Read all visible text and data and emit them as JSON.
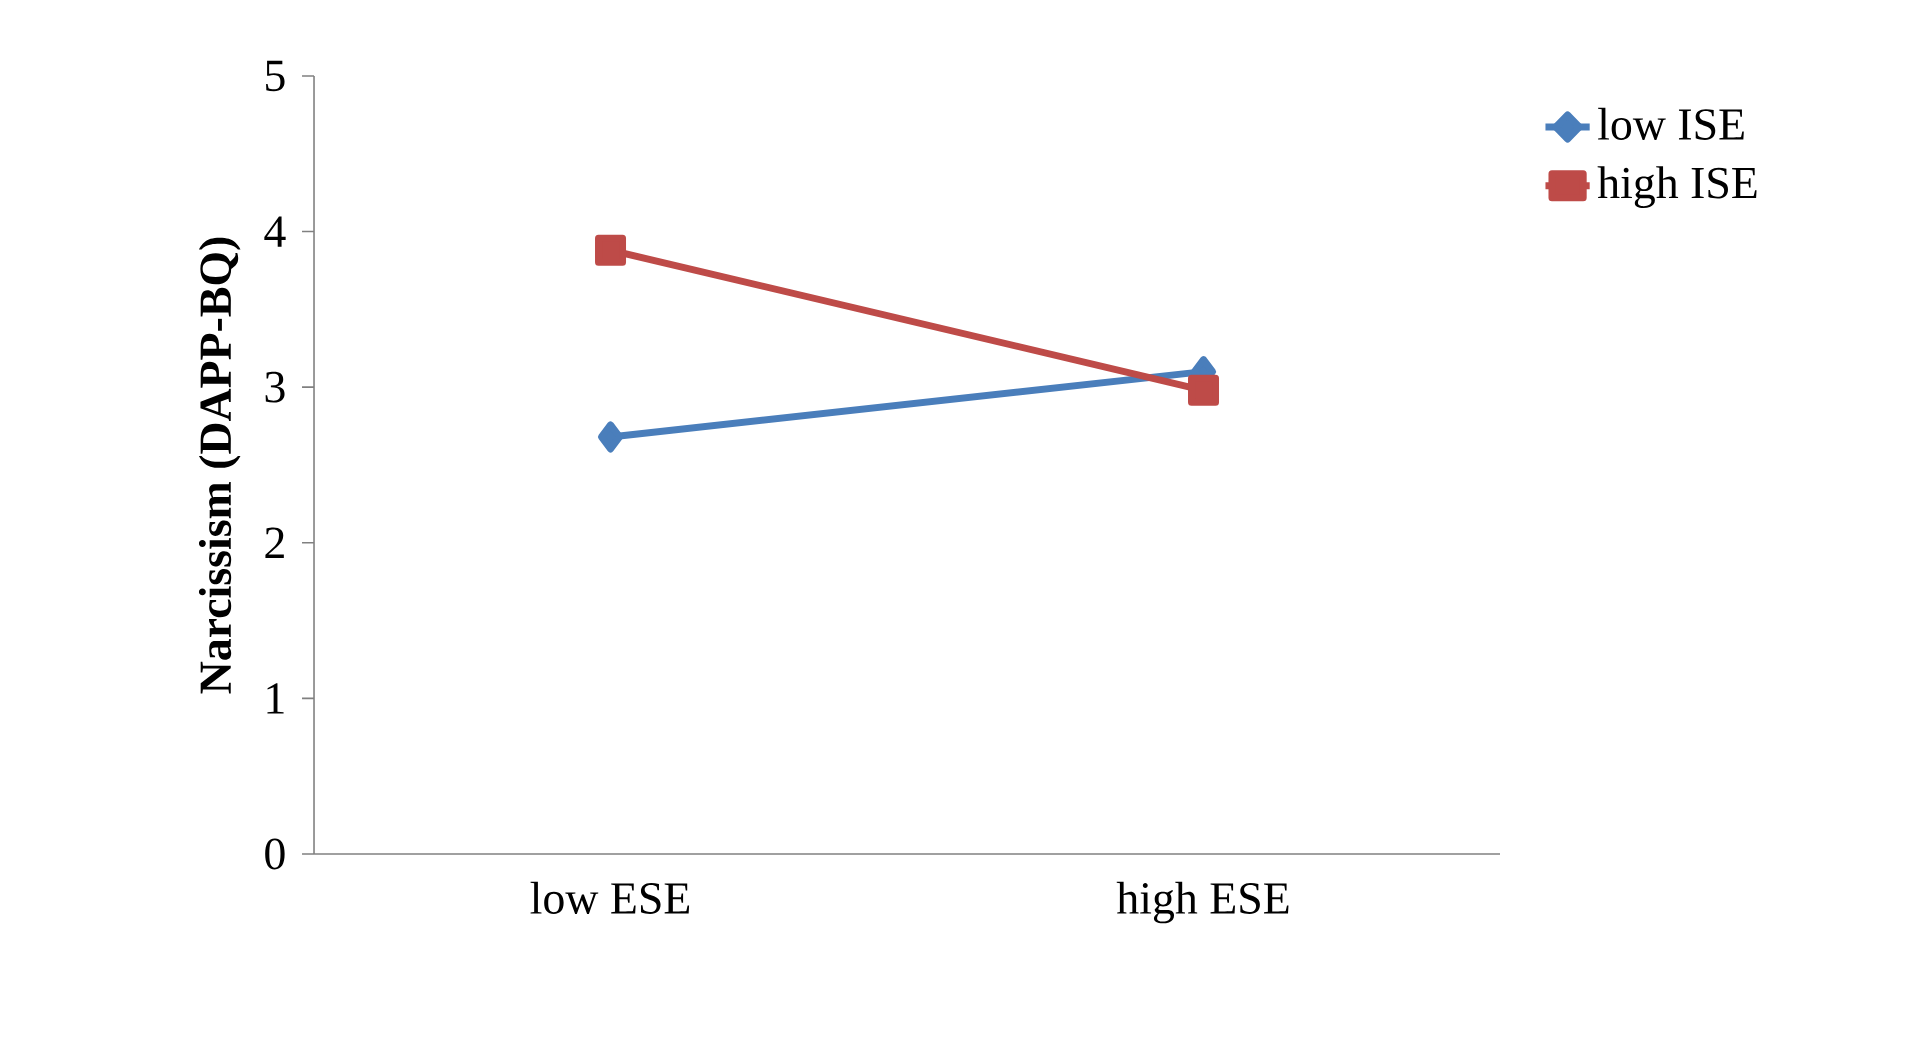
{
  "chart_data": {
    "type": "line",
    "ylabel": "Narcissism (DAPP-BQ)",
    "categories": [
      "low ESE",
      "high ESE"
    ],
    "series": [
      {
        "name": "low ISE",
        "color": "#4a7ebb",
        "values": [
          2.68,
          3.1
        ],
        "marker": "diamond"
      },
      {
        "name": "high ISE",
        "color": "#be4b48",
        "values": [
          3.88,
          2.98
        ],
        "marker": "square"
      }
    ],
    "ylim": [
      0,
      5
    ],
    "yticks": [
      0,
      1,
      2,
      3,
      4,
      5
    ],
    "grid": false,
    "legend": "right",
    "line_style": "solid"
  }
}
